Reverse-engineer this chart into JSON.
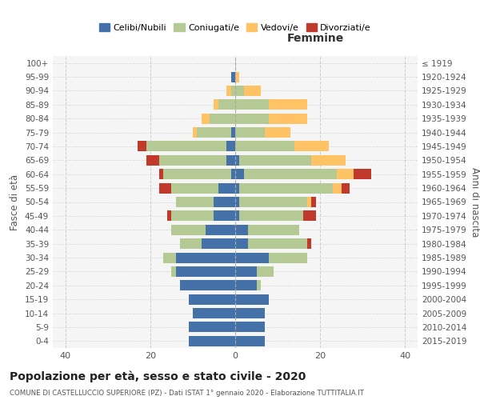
{
  "age_groups": [
    "0-4",
    "5-9",
    "10-14",
    "15-19",
    "20-24",
    "25-29",
    "30-34",
    "35-39",
    "40-44",
    "45-49",
    "50-54",
    "55-59",
    "60-64",
    "65-69",
    "70-74",
    "75-79",
    "80-84",
    "85-89",
    "90-94",
    "95-99",
    "100+"
  ],
  "birth_years": [
    "2015-2019",
    "2010-2014",
    "2005-2009",
    "2000-2004",
    "1995-1999",
    "1990-1994",
    "1985-1989",
    "1980-1984",
    "1975-1979",
    "1970-1974",
    "1965-1969",
    "1960-1964",
    "1955-1959",
    "1950-1954",
    "1945-1949",
    "1940-1944",
    "1935-1939",
    "1930-1934",
    "1925-1929",
    "1920-1924",
    "≤ 1919"
  ],
  "males": {
    "celibi": [
      11,
      11,
      10,
      11,
      13,
      14,
      14,
      8,
      7,
      5,
      5,
      4,
      1,
      2,
      2,
      1,
      0,
      0,
      0,
      1,
      0
    ],
    "coniugati": [
      0,
      0,
      0,
      0,
      0,
      1,
      3,
      5,
      8,
      10,
      9,
      11,
      16,
      16,
      19,
      8,
      6,
      4,
      1,
      0,
      0
    ],
    "vedovi": [
      0,
      0,
      0,
      0,
      0,
      0,
      0,
      0,
      0,
      0,
      0,
      0,
      0,
      0,
      0,
      1,
      2,
      1,
      1,
      0,
      0
    ],
    "divorziati": [
      0,
      0,
      0,
      0,
      0,
      0,
      0,
      0,
      0,
      1,
      0,
      3,
      1,
      3,
      2,
      0,
      0,
      0,
      0,
      0,
      0
    ]
  },
  "females": {
    "nubili": [
      7,
      7,
      7,
      8,
      5,
      5,
      8,
      3,
      3,
      1,
      1,
      1,
      2,
      1,
      0,
      0,
      0,
      0,
      0,
      0,
      0
    ],
    "coniugate": [
      0,
      0,
      0,
      0,
      1,
      4,
      9,
      14,
      12,
      15,
      16,
      22,
      22,
      17,
      14,
      7,
      8,
      8,
      2,
      0,
      0
    ],
    "vedove": [
      0,
      0,
      0,
      0,
      0,
      0,
      0,
      0,
      0,
      0,
      1,
      2,
      4,
      8,
      8,
      6,
      9,
      9,
      4,
      1,
      0
    ],
    "divorziate": [
      0,
      0,
      0,
      0,
      0,
      0,
      0,
      1,
      0,
      3,
      1,
      2,
      4,
      0,
      0,
      0,
      0,
      0,
      0,
      0,
      0
    ]
  },
  "colors": {
    "celibi": "#4472a8",
    "coniugati": "#b5c994",
    "vedovi": "#ffc265",
    "divorziati": "#c0392b"
  },
  "xlim": 43,
  "title": "Popolazione per età, sesso e stato civile - 2020",
  "subtitle": "COMUNE DI CASTELLUCCIO SUPERIORE (PZ) - Dati ISTAT 1° gennaio 2020 - Elaborazione TUTTITALIA.IT",
  "ylabel_left": "Fasce di età",
  "ylabel_right": "Anni di nascita"
}
